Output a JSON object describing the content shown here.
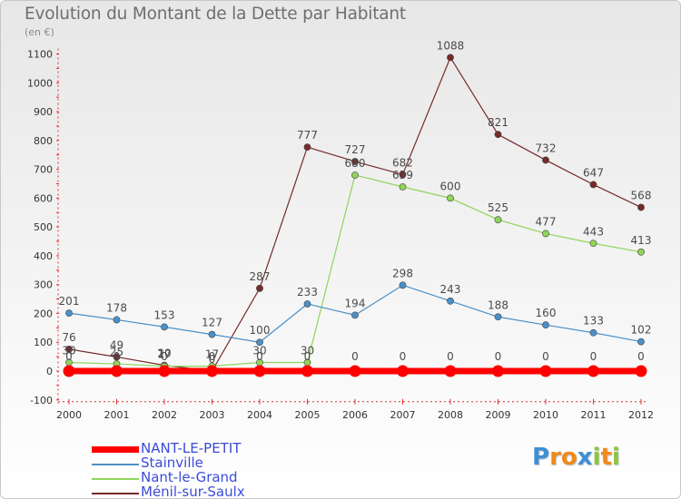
{
  "title": "Evolution du Montant de la Dette par Habitant",
  "unit_label": "(en €)",
  "logo": {
    "letters": [
      {
        "ch": "P",
        "color": "#3d8fd6"
      },
      {
        "ch": "r",
        "color": "#f08a1c"
      },
      {
        "ch": "o",
        "color": "#f08a1c"
      },
      {
        "ch": "x",
        "color": "#3d8fd6"
      },
      {
        "ch": "i",
        "color": "#8cc63f"
      },
      {
        "ch": "t",
        "color": "#f08a1c"
      },
      {
        "ch": "i",
        "color": "#8cc63f"
      }
    ]
  },
  "chart_data": {
    "type": "line",
    "x": [
      "2000",
      "2001",
      "2002",
      "2003",
      "2004",
      "2005",
      "2006",
      "2007",
      "2008",
      "2009",
      "2010",
      "2011",
      "2012"
    ],
    "ylim": [
      -100,
      1100
    ],
    "yticks": [
      "-100",
      "0",
      "100",
      "200",
      "300",
      "400",
      "500",
      "600",
      "700",
      "800",
      "900",
      "1000",
      "1100"
    ],
    "grid": false,
    "legend_position": "bottom-left",
    "series": [
      {
        "name": "Ménil-sur-Saulx",
        "color": "#772a2a",
        "values": [
          76,
          49,
          20,
          0,
          287,
          777,
          727,
          682,
          1088,
          821,
          732,
          647,
          568
        ],
        "labels": [
          "76",
          "49",
          "20",
          "0",
          "287",
          "777",
          "727",
          "682",
          "1088",
          "821",
          "732",
          "647",
          "568"
        ]
      },
      {
        "name": "Nant-le-Grand",
        "color": "#8fd45a",
        "values": [
          30,
          25,
          17,
          17,
          30,
          30,
          680,
          639,
          600,
          525,
          477,
          443,
          413
        ],
        "labels": [
          "30",
          "25",
          "17",
          "17",
          "30",
          "30",
          "680",
          "639",
          "600",
          "525",
          "477",
          "443",
          "413"
        ]
      },
      {
        "name": "Stainville",
        "color": "#4a90c8",
        "values": [
          201,
          178,
          153,
          127,
          100,
          233,
          194,
          298,
          243,
          188,
          160,
          133,
          102
        ],
        "labels": [
          "201",
          "178",
          "153",
          "127",
          "100",
          "233",
          "194",
          "298",
          "243",
          "188",
          "160",
          "133",
          "102"
        ]
      },
      {
        "name": "NANT-LE-PETIT",
        "color": "#ff0000",
        "values": [
          0,
          0,
          0,
          0,
          0,
          0,
          0,
          0,
          0,
          0,
          0,
          0,
          0
        ],
        "labels": [
          "0",
          "0",
          "0",
          "0",
          "0",
          "0",
          "0",
          "0",
          "0",
          "0",
          "0",
          "0",
          "0"
        ]
      }
    ],
    "legend": [
      {
        "name": "NANT-LE-PETIT",
        "color": "#ff0000",
        "label_color": "#3b4bd8"
      },
      {
        "name": "Stainville",
        "color": "#4a90c8",
        "label_color": "#3b4bd8"
      },
      {
        "name": "Nant-le-Grand",
        "color": "#8fd45a",
        "label_color": "#3b4bd8"
      },
      {
        "name": "Ménil-sur-Saulx",
        "color": "#772a2a",
        "label_color": "#3b4bd8"
      }
    ]
  }
}
